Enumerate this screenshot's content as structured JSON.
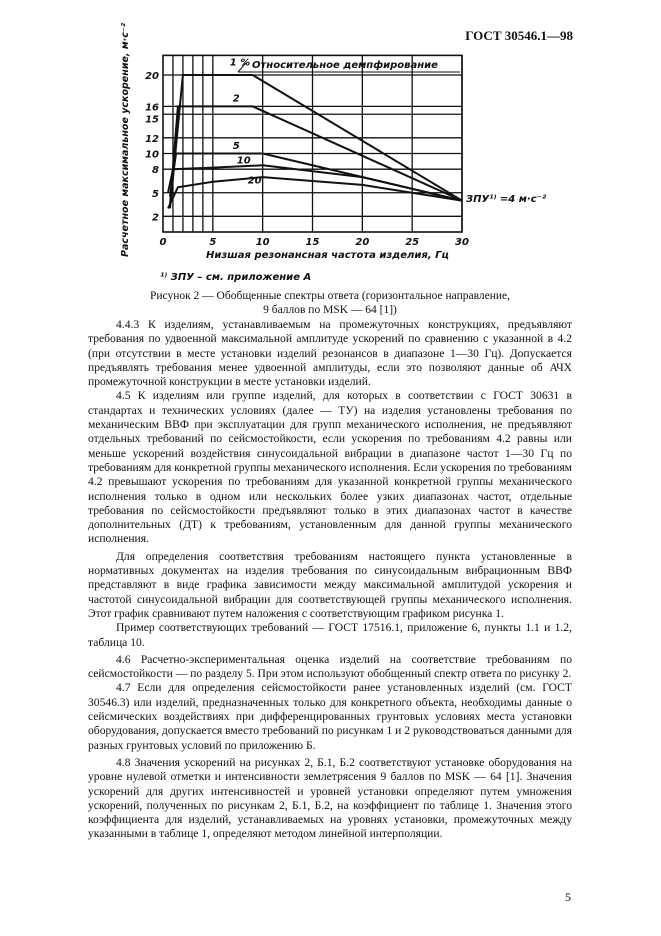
{
  "header": {
    "doc_id": "ГОСТ 30546.1—98"
  },
  "chart_data": {
    "type": "line",
    "title": "",
    "xlabel": "Низшая резонансная частота изделия, Гц",
    "ylabel": "Расчетное максимальное ускорение, м·с⁻²",
    "xlim": [
      0,
      30
    ],
    "ylim": [
      0,
      22.5
    ],
    "x_ticks": [
      "0",
      "5",
      "10",
      "15",
      "20",
      "25",
      "30"
    ],
    "y_ticks": [
      "2",
      "5",
      "8",
      "10",
      "12",
      "15",
      "16",
      "20"
    ],
    "x_grid": [
      1,
      2,
      3,
      4,
      5,
      10,
      15,
      20,
      25,
      30
    ],
    "y_grid": [
      2,
      5,
      8,
      10,
      12,
      15,
      16,
      20
    ],
    "grid": true,
    "legend_title": "Относительное демпфирование",
    "series": [
      {
        "name": "1 %",
        "points": [
          [
            0.7,
            3
          ],
          [
            2,
            20
          ],
          [
            9,
            20
          ],
          [
            30,
            4
          ]
        ]
      },
      {
        "name": "2",
        "points": [
          [
            0.7,
            3.5
          ],
          [
            1.5,
            16
          ],
          [
            9,
            16
          ],
          [
            30,
            4
          ]
        ]
      },
      {
        "name": "5",
        "points": [
          [
            0.7,
            4.5
          ],
          [
            1.3,
            10
          ],
          [
            10,
            10
          ],
          [
            30,
            4
          ]
        ]
      },
      {
        "name": "10",
        "points": [
          [
            0.5,
            5
          ],
          [
            1,
            8
          ],
          [
            5,
            8.2
          ],
          [
            10,
            8.5
          ],
          [
            20,
            7
          ],
          [
            30,
            4
          ]
        ]
      },
      {
        "name": "20",
        "points": [
          [
            0.5,
            3
          ],
          [
            1.5,
            5.7
          ],
          [
            5,
            6.4
          ],
          [
            10,
            7
          ],
          [
            20,
            6
          ],
          [
            30,
            4
          ]
        ]
      }
    ],
    "annotation": "ЗПУ¹⁾ =4 м·с⁻²",
    "footnote": "¹⁾ ЗПУ – см. приложение А"
  },
  "caption": {
    "line1": "Рисунок 2 — Обобщенные спектры ответа (горизонтальное направление,",
    "line2": "9 баллов по MSK — 64 [1])"
  },
  "paragraphs": [
    "4.4.3 К изделиям, устанавливаемым на промежуточных конструкциях, предъявляют требования по удвоенной максимальной амплитуде ускорений по сравнению с указанной в 4.2 (при отсутствии в месте установки изделий резонансов в диапазоне 1—30 Гц). Допускается предъявлять требования менее удвоенной амплитуды, если это позволяют данные об АЧХ промежуточной конструкции в месте установки изделий.",
    "4.5 К изделиям или группе изделий, для которых в соответствии с ГОСТ 30631 в стандартах и технических условиях (далее — ТУ) на изделия установлены требования по механическим ВВФ при эксплуатации для групп механического исполнения, не предъявляют отдельных требований по сейсмостойкости, если ускорения по требованиям 4.2 равны или меньше ускорений воздействия синусоидальной вибрации в диапазоне частот 1—30 Гц по требованиям для конкретной группы механического исполнения. Если ускорения по требованиям 4.2 превышают ускорения по требованиям для указанной конкретной группы механического исполнения только в одном или нескольких более узких диапазонах частот, отдельные требования по сейсмостойкости предъявляют только в этих диапазонах частот в качестве дополнительных (ДТ) к требованиям, установленным для данной группы механического исполнения.",
    "Для определения соответствия требованиям настоящего пункта установленные в нормативных документах на изделия требования по синусоидальным вибрационным ВВФ представляют в виде графика зависимости между максимальной амплитудой ускорения и частотой синусоидальной вибрации для соответствующей группы механического исполнения. Этот график сравнивают путем наложения с соответствующим графиком рисунка 1.",
    "Пример соответствующих требований — ГОСТ 17516.1, приложение 6, пункты 1.1 и 1.2, таблица 10.",
    "4.6 Расчетно-экспериментальная оценка изделий на соответствие требованиям по сейсмостойкости — по разделу 5. При этом используют обобщенный спектр ответа по рисунку 2.",
    "4.7 Если для определения сейсмостойкости ранее установленных изделий (см. ГОСТ 30546.3) или изделий, предназначенных только для конкретного объекта, необходимы данные о сейсмических воздействиях при дифференцированных грунтовых условиях места установки оборудования, допускается вместо требований по рисункам 1 и 2 руководствоваться данными для разных грунтовых условий по приложению Б.",
    "4.8 Значения ускорений на рисунках 2, Б.1, Б.2 соответствуют установке оборудования на уровне нулевой отметки и интенсивности землетрясения 9 баллов по MSK — 64 [1]. Значения ускорений для других интенсивностей и уровней установки определяют путем умножения ускорений, полученных по рисункам 2, Б.1, Б.2, на коэффициент по таблице 1. Значения этого коэффициента для изделий, устанавливаемых на уровнях установки, промежуточных между указанными в таблице 1, определяют методом линейной интерполяции."
  ],
  "page_number": "5"
}
